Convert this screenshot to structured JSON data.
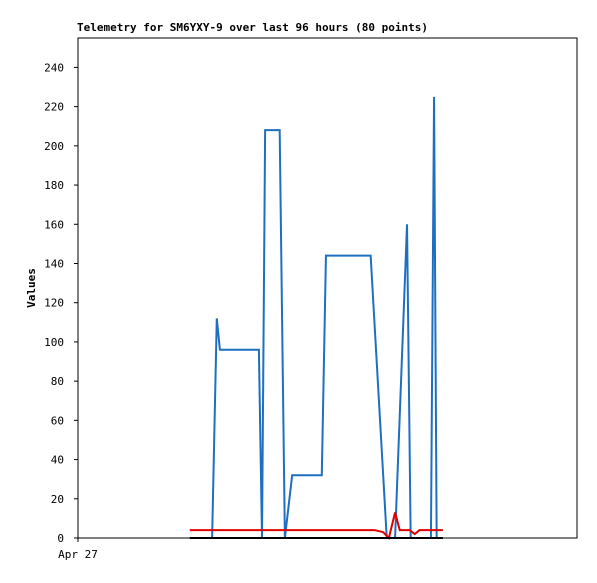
{
  "chart_data": {
    "type": "line",
    "title": "Telemetry for SM6YXY-9 over last 96 hours (80 points)",
    "y_label": "Values",
    "xlim": [
      0,
      96
    ],
    "xticks": [
      {
        "value": 0,
        "label": "Apr 27"
      }
    ],
    "ylim": [
      0,
      255
    ],
    "yticks": [
      0,
      20,
      40,
      60,
      80,
      100,
      120,
      140,
      160,
      180,
      200,
      220,
      240
    ],
    "series": [
      {
        "name": "blue",
        "color": "#1f6fc0",
        "x": [
          25.8,
          26.7,
          27.3,
          34.8,
          35.4,
          36.0,
          38.8,
          39.8,
          41.2,
          46.9,
          47.7,
          56.3,
          59.4,
          61.0,
          63.3,
          64.0,
          67.9,
          68.5,
          69.0,
          70.2
        ],
        "values": [
          0,
          112,
          96,
          96,
          0,
          208,
          208,
          0,
          32,
          32,
          144,
          144,
          0,
          0,
          160,
          0,
          0,
          225,
          0,
          0
        ]
      },
      {
        "name": "red",
        "color": "#e00000",
        "x": [
          21.5,
          57.1,
          58.7,
          59.8,
          61.0,
          61.9,
          63.8,
          64.8,
          65.7,
          70.2
        ],
        "values": [
          4,
          4,
          3,
          0,
          13,
          4,
          4,
          2,
          4,
          4
        ]
      },
      {
        "name": "black",
        "color": "#000000",
        "x": [
          21.5,
          70.2
        ],
        "values": [
          0,
          0
        ]
      }
    ]
  }
}
